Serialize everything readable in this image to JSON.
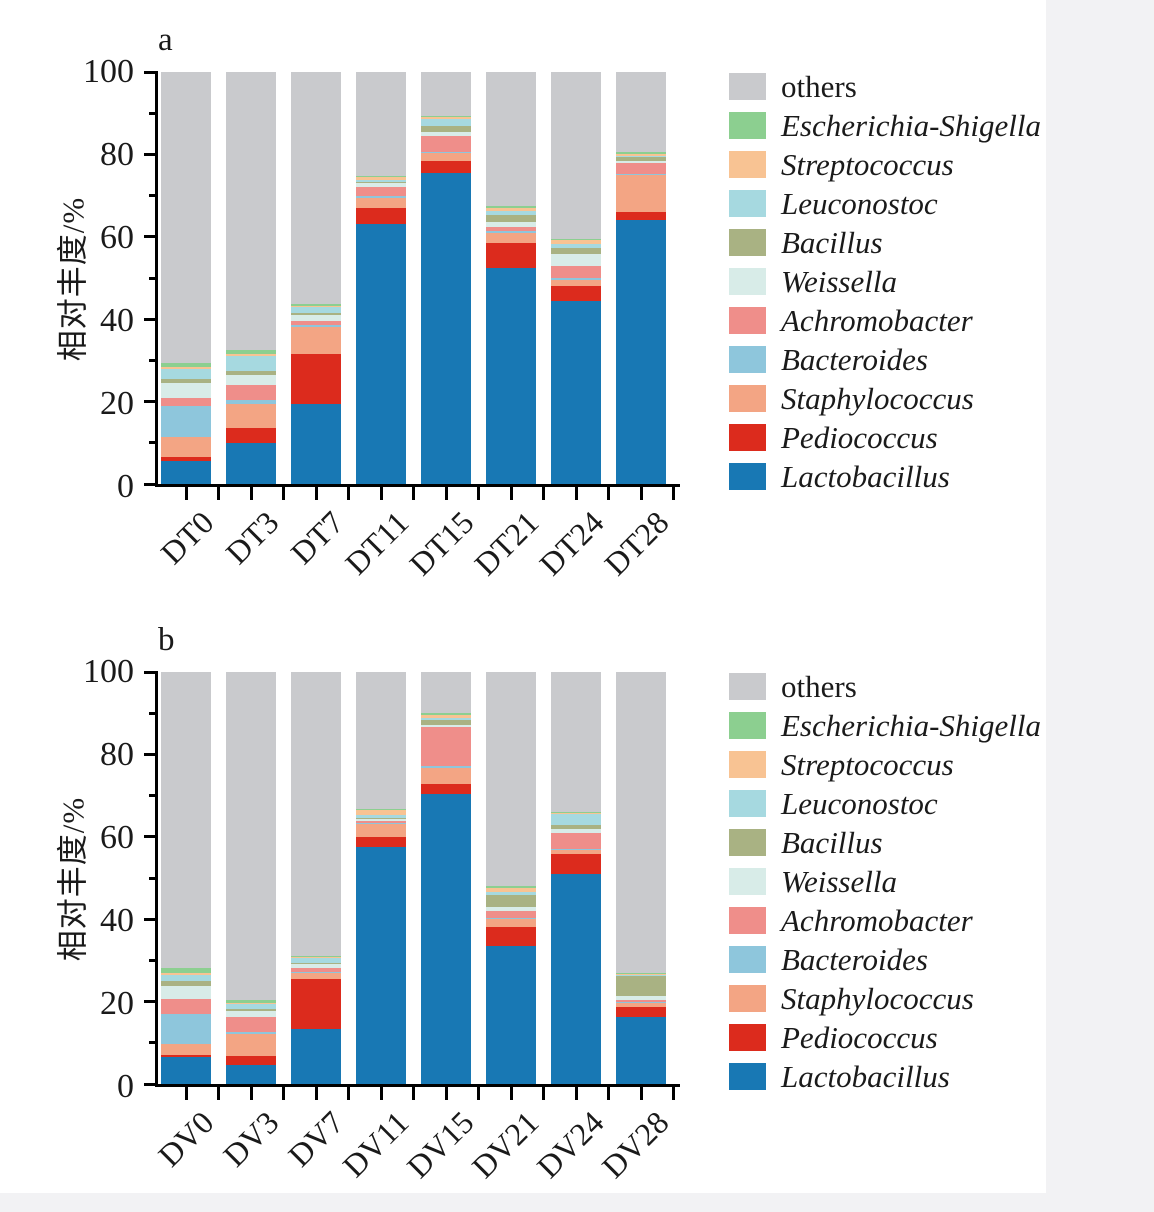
{
  "page": {
    "background": "#ffffff",
    "margin_strip_color": "#f2f2f4"
  },
  "y_axis": {
    "title": "相对丰度/%",
    "tick_labels": [
      "0",
      "20",
      "40",
      "60",
      "80",
      "100"
    ]
  },
  "chart_data": [
    {
      "type": "bar",
      "stacked": true,
      "panel_letter": "a",
      "ylabel": "相对丰度/%",
      "ylim": [
        0,
        100
      ],
      "yticks": [
        0,
        20,
        40,
        60,
        80,
        100
      ],
      "minor_tick_step": 10,
      "grid": false,
      "legend_position": "right-outside",
      "categories": [
        "DT0",
        "DT3",
        "DT7",
        "DT11",
        "DT15",
        "DT21",
        "DT24",
        "DT28"
      ],
      "series": [
        {
          "name": "Lactobacillus",
          "color": "#1878b4",
          "italic": true,
          "values": [
            5.5,
            10,
            19.5,
            63,
            75.5,
            52.5,
            44.5,
            64
          ]
        },
        {
          "name": "Pediococcus",
          "color": "#dc2b1d",
          "italic": true,
          "values": [
            1,
            3.5,
            12,
            4,
            3,
            6,
            3.5,
            2
          ]
        },
        {
          "name": "Staphylococcus",
          "color": "#f3a584",
          "italic": true,
          "values": [
            5,
            6,
            6.5,
            2.5,
            1.8,
            2.5,
            1.6,
            9
          ]
        },
        {
          "name": "Bacteroides",
          "color": "#8ec6dc",
          "italic": true,
          "values": [
            7.5,
            1,
            0.5,
            0.5,
            0.3,
            0.5,
            0.4,
            0.3
          ]
        },
        {
          "name": "Achromobacter",
          "color": "#ef8e8a",
          "italic": true,
          "values": [
            2,
            3.5,
            1,
            2,
            3.8,
            1,
            2.9,
            2.5
          ]
        },
        {
          "name": "Weissella",
          "color": "#d8ece8",
          "italic": true,
          "values": [
            3.5,
            2.5,
            1.5,
            1,
            1,
            1.2,
            3,
            0.5
          ]
        },
        {
          "name": "Bacillus",
          "color": "#a9b283",
          "italic": true,
          "values": [
            1,
            1,
            0.5,
            0.3,
            1.5,
            1.5,
            1.4,
            1
          ]
        },
        {
          "name": "Leuconostoc",
          "color": "#a6d9e0",
          "italic": true,
          "values": [
            2.5,
            3.5,
            1.5,
            0.5,
            1.8,
            1,
            1,
            0.3
          ]
        },
        {
          "name": "Streptococcus",
          "color": "#f8c393",
          "italic": true,
          "values": [
            0.5,
            0.5,
            0.3,
            0.7,
            0.3,
            0.8,
            1,
            0.5
          ]
        },
        {
          "name": "Escherichia-Shigella",
          "color": "#8ccf90",
          "italic": true,
          "values": [
            1,
            1,
            0.3,
            0.2,
            0.3,
            0.5,
            0.3,
            0.5
          ]
        },
        {
          "name": "others",
          "color": "#c9cacd",
          "italic": false,
          "values": [
            70.5,
            67.5,
            56.4,
            25.3,
            10.7,
            32.5,
            40.4,
            19.4
          ]
        }
      ]
    },
    {
      "type": "bar",
      "stacked": true,
      "panel_letter": "b",
      "ylabel": "相对丰度/%",
      "ylim": [
        0,
        100
      ],
      "yticks": [
        0,
        20,
        40,
        60,
        80,
        100
      ],
      "minor_tick_step": 10,
      "grid": false,
      "legend_position": "right-outside",
      "categories": [
        "DV0",
        "DV3",
        "DV7",
        "DV11",
        "DV15",
        "DV21",
        "DV24",
        "DV28"
      ],
      "series": [
        {
          "name": "Lactobacillus",
          "color": "#1878b4",
          "italic": true,
          "values": [
            6.5,
            4.7,
            13.3,
            57.5,
            70.4,
            33.4,
            51,
            16.2
          ]
        },
        {
          "name": "Pediococcus",
          "color": "#dc2b1d",
          "italic": true,
          "values": [
            0.5,
            2,
            12.3,
            2.4,
            2.4,
            4.8,
            4.8,
            2.6
          ]
        },
        {
          "name": "Staphylococcus",
          "color": "#f3a584",
          "italic": true,
          "values": [
            2.7,
            5.5,
            1.3,
            3.2,
            4,
            1.8,
            1,
            0.8
          ]
        },
        {
          "name": "Bacteroides",
          "color": "#8ec6dc",
          "italic": true,
          "values": [
            7.2,
            0.5,
            0.3,
            0.2,
            0.3,
            0.3,
            0.3,
            0.2
          ]
        },
        {
          "name": "Achromobacter",
          "color": "#ef8e8a",
          "italic": true,
          "values": [
            3.8,
            3.6,
            1,
            0.5,
            9.6,
            1.7,
            3.8,
            0.6
          ]
        },
        {
          "name": "Weissella",
          "color": "#d8ece8",
          "italic": true,
          "values": [
            3.2,
            1.5,
            1,
            0.6,
            0.5,
            1,
            1,
            1
          ]
        },
        {
          "name": "Bacillus",
          "color": "#a9b283",
          "italic": true,
          "values": [
            1.2,
            0.4,
            0.3,
            0.2,
            1.2,
            3,
            1,
            4.8
          ]
        },
        {
          "name": "Leuconostoc",
          "color": "#a6d9e0",
          "italic": true,
          "values": [
            1.5,
            1.2,
            1,
            0.8,
            0.5,
            0.5,
            2.6,
            0.3
          ]
        },
        {
          "name": "Streptococcus",
          "color": "#f8c393",
          "italic": true,
          "values": [
            0.3,
            0.2,
            0.3,
            1.2,
            0.8,
            1.2,
            0.3,
            0.3
          ]
        },
        {
          "name": "Escherichia-Shigella",
          "color": "#8ccf90",
          "italic": true,
          "values": [
            1.2,
            0.8,
            0.3,
            0.2,
            0.3,
            0.3,
            0.3,
            0.2
          ]
        },
        {
          "name": "others",
          "color": "#c9cacd",
          "italic": false,
          "values": [
            71.9,
            79.6,
            68.9,
            33.2,
            10,
            52,
            33.9,
            73
          ]
        }
      ]
    }
  ]
}
